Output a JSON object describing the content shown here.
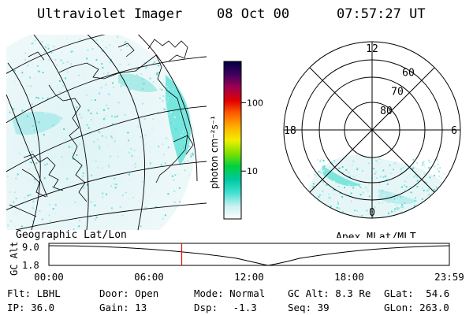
{
  "header": {
    "instrument": "Ultraviolet Imager",
    "date": "08 Oct 00",
    "time": "07:57:27 UT"
  },
  "colorbar": {
    "unit_label": "photon cm⁻²s⁻¹",
    "ticks": [
      {
        "label": "100",
        "value": 100
      },
      {
        "label": "10",
        "value": 10
      }
    ],
    "range": [
      2,
      400
    ],
    "scale": "log",
    "colors": [
      "#ffffff",
      "#c8f0f0",
      "#40e0d0",
      "#00c8a0",
      "#00d040",
      "#80e000",
      "#f0f000",
      "#ffb000",
      "#ff6000",
      "#e00000",
      "#a00050",
      "#400060",
      "#000040"
    ]
  },
  "geo_panel": {
    "caption": "Geographic Lat/Lon"
  },
  "polar_panel": {
    "caption": "Apex MLat/MLT",
    "mlt_labels": [
      {
        "label": "12",
        "hour": 12
      },
      {
        "label": "18",
        "hour": 18
      },
      {
        "label": "6",
        "hour": 6
      },
      {
        "label": "0",
        "hour": 0
      }
    ],
    "lat_labels": [
      {
        "label": "60",
        "lat": 60
      },
      {
        "label": "70",
        "lat": 70
      },
      {
        "label": "80",
        "lat": 80
      }
    ]
  },
  "altitude_plot": {
    "ylabel": "GC Alt",
    "y_ticks": [
      "9.0",
      "1.8"
    ],
    "x_ticks": [
      "00:00",
      "06:00",
      "12:00",
      "18:00",
      "23:59"
    ],
    "current_time_hours": 7.96,
    "marker_color": "#ff0000"
  },
  "footer": {
    "flt": {
      "label": "Flt:",
      "value": "LBHL"
    },
    "ip": {
      "label": "IP:",
      "value": "36.0"
    },
    "door": {
      "label": "Door:",
      "value": "Open"
    },
    "gain": {
      "label": "Gain:",
      "value": "13"
    },
    "mode": {
      "label": "Mode:",
      "value": "Normal"
    },
    "dsp": {
      "label": "Dsp:",
      "value": "-1.3"
    },
    "gcalt": {
      "label": "GC Alt:",
      "value": "8.3 Re"
    },
    "seq": {
      "label": "Seq:",
      "value": "39"
    },
    "glat": {
      "label": "GLat:",
      "value": "54.6"
    },
    "glon": {
      "label": "GLon:",
      "value": "263.0"
    }
  }
}
